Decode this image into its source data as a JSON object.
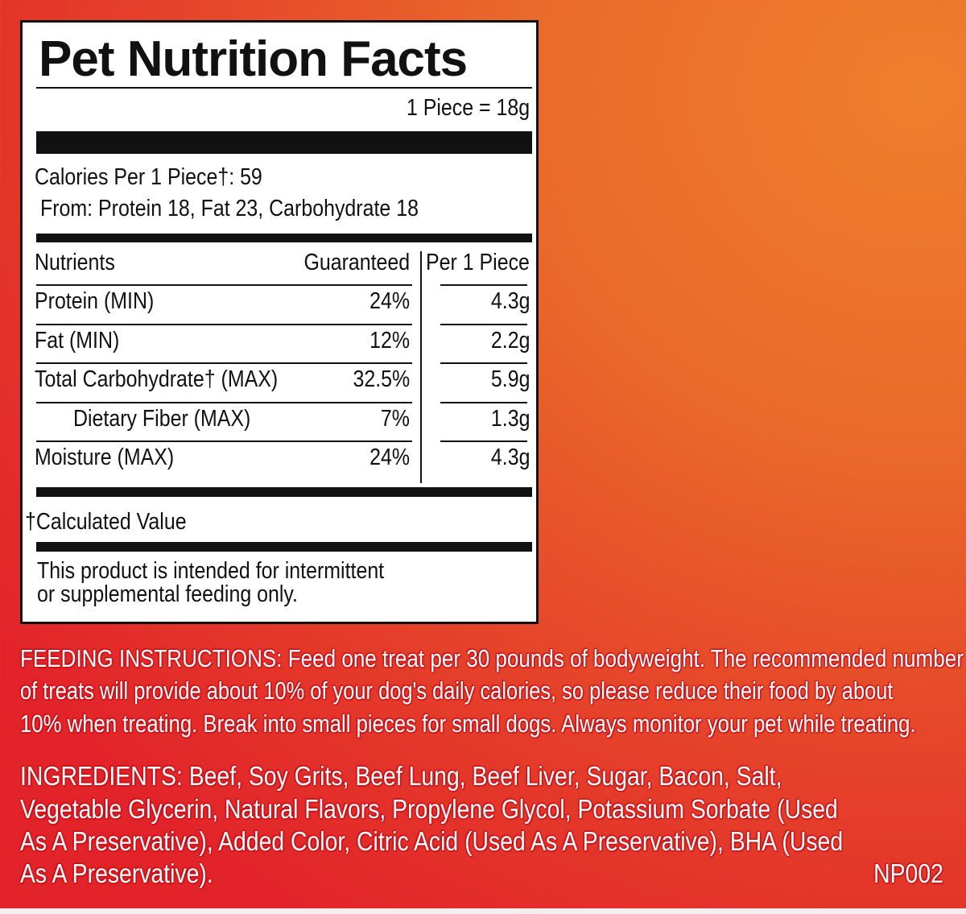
{
  "panel": {
    "title": "Pet Nutrition Facts",
    "serving": "1 Piece = 18g",
    "calories": "Calories Per 1 Piece†: 59",
    "calories_from": "From: Protein 18, Fat 23, Carbohydrate 18",
    "headers": {
      "nutrients": "Nutrients",
      "guaranteed": "Guaranteed",
      "per_piece": "Per 1 Piece"
    },
    "rows": [
      {
        "name": "Protein (MIN)",
        "guaranteed": "24%",
        "per_piece": "4.3g"
      },
      {
        "name": "Fat (MIN)",
        "guaranteed": "12%",
        "per_piece": "2.2g"
      },
      {
        "name": "Total Carbohydrate† (MAX)",
        "guaranteed": "32.5%",
        "per_piece": "5.9g"
      },
      {
        "name": "Dietary Fiber (MAX)",
        "guaranteed": "7%",
        "per_piece": "1.3g"
      },
      {
        "name": "Moisture (MAX)",
        "guaranteed": "24%",
        "per_piece": "4.3g"
      }
    ],
    "footnote": "†Calculated Value",
    "disclaimer": [
      "This product is intended for intermittent",
      "or supplemental feeding only."
    ]
  },
  "feeding": [
    "FEEDING INSTRUCTIONS: Feed one treat per 30 pounds of bodyweight. The recommended number",
    "of treats will provide about 10% of your dog's daily calories, so please reduce their food by about",
    "10% when treating. Break into small pieces for small dogs. Always monitor your pet while treating."
  ],
  "ingredients": [
    "INGREDIENTS: Beef, Soy Grits, Beef Lung, Beef Liver, Sugar, Bacon, Salt,",
    "Vegetable Glycerin, Natural Flavors, Propylene Glycol, Potassium Sorbate (Used",
    "As A Preservative), Added Color, Citric Acid (Used As A Preservative), BHA (Used",
    "As A Preservative)."
  ],
  "code": "NP002",
  "colors": {
    "background_red": "#e2242a",
    "background_orange": "#ee7f2c",
    "panel": "#ffffff",
    "ink": "#111111"
  }
}
